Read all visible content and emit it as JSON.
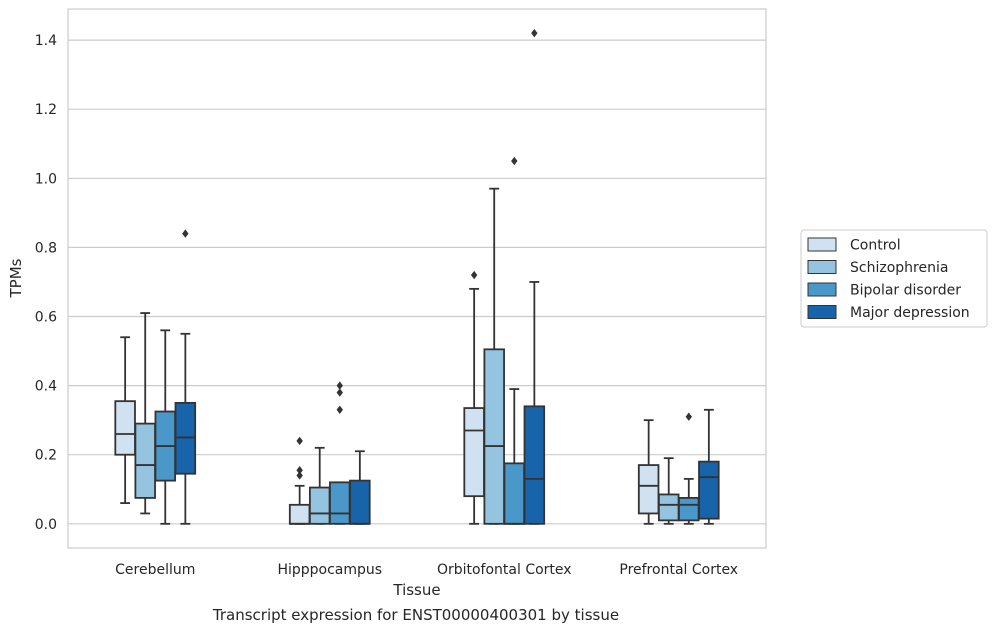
{
  "caption": "Transcript expression for ENST00000400301 by tissue",
  "chart_data": {
    "type": "box",
    "xlabel": "Tissue",
    "ylabel": "TPMs",
    "ylim": [
      -0.07,
      1.49
    ],
    "yticks": [
      0.0,
      0.2,
      0.4,
      0.6,
      0.8,
      1.0,
      1.2,
      1.4
    ],
    "ytick_labels": [
      "0.0",
      "0.2",
      "0.4",
      "0.6",
      "0.8",
      "1.0",
      "1.2",
      "1.4"
    ],
    "grid": "horizontal",
    "legend_position": "right",
    "categories": [
      "Cerebellum",
      "Hipppocampus",
      "Orbitofontal Cortex",
      "Prefrontal Cortex"
    ],
    "series": [
      {
        "name": "Control",
        "color": "#d0e1f2",
        "boxes": [
          {
            "whisker_low": 0.06,
            "q1": 0.2,
            "median": 0.26,
            "q3": 0.355,
            "whisker_high": 0.54,
            "outliers": []
          },
          {
            "whisker_low": 0.0,
            "q1": 0.0,
            "median": 0.0,
            "q3": 0.055,
            "whisker_high": 0.11,
            "outliers": [
              0.14,
              0.155,
              0.24
            ]
          },
          {
            "whisker_low": 0.0,
            "q1": 0.08,
            "median": 0.27,
            "q3": 0.335,
            "whisker_high": 0.68,
            "outliers": [
              0.72
            ]
          },
          {
            "whisker_low": 0.0,
            "q1": 0.03,
            "median": 0.11,
            "q3": 0.17,
            "whisker_high": 0.3,
            "outliers": []
          }
        ]
      },
      {
        "name": "Schizophrenia",
        "color": "#94c4df",
        "boxes": [
          {
            "whisker_low": 0.03,
            "q1": 0.075,
            "median": 0.17,
            "q3": 0.29,
            "whisker_high": 0.61,
            "outliers": []
          },
          {
            "whisker_low": 0.0,
            "q1": 0.0,
            "median": 0.03,
            "q3": 0.105,
            "whisker_high": 0.22,
            "outliers": []
          },
          {
            "whisker_low": 0.0,
            "q1": 0.0,
            "median": 0.225,
            "q3": 0.505,
            "whisker_high": 0.97,
            "outliers": []
          },
          {
            "whisker_low": 0.0,
            "q1": 0.01,
            "median": 0.055,
            "q3": 0.085,
            "whisker_high": 0.19,
            "outliers": []
          }
        ]
      },
      {
        "name": "Bipolar disorder",
        "color": "#4a98c9",
        "boxes": [
          {
            "whisker_low": 0.0,
            "q1": 0.125,
            "median": 0.225,
            "q3": 0.325,
            "whisker_high": 0.56,
            "outliers": []
          },
          {
            "whisker_low": 0.0,
            "q1": 0.0,
            "median": 0.03,
            "q3": 0.12,
            "whisker_high": 0.12,
            "outliers": [
              0.33,
              0.38,
              0.4
            ]
          },
          {
            "whisker_low": 0.0,
            "q1": 0.0,
            "median": 0.0,
            "q3": 0.175,
            "whisker_high": 0.39,
            "outliers": [
              1.05
            ]
          },
          {
            "whisker_low": 0.0,
            "q1": 0.01,
            "median": 0.055,
            "q3": 0.075,
            "whisker_high": 0.13,
            "outliers": [
              0.31
            ]
          }
        ]
      },
      {
        "name": "Major depression",
        "color": "#1764ab",
        "boxes": [
          {
            "whisker_low": 0.0,
            "q1": 0.145,
            "median": 0.25,
            "q3": 0.35,
            "whisker_high": 0.55,
            "outliers": [
              0.84
            ]
          },
          {
            "whisker_low": 0.0,
            "q1": 0.0,
            "median": 0.0,
            "q3": 0.125,
            "whisker_high": 0.21,
            "outliers": []
          },
          {
            "whisker_low": 0.0,
            "q1": 0.0,
            "median": 0.13,
            "q3": 0.34,
            "whisker_high": 0.7,
            "outliers": [
              1.42
            ]
          },
          {
            "whisker_low": 0.0,
            "q1": 0.015,
            "median": 0.135,
            "q3": 0.18,
            "whisker_high": 0.33,
            "outliers": []
          }
        ]
      }
    ]
  }
}
